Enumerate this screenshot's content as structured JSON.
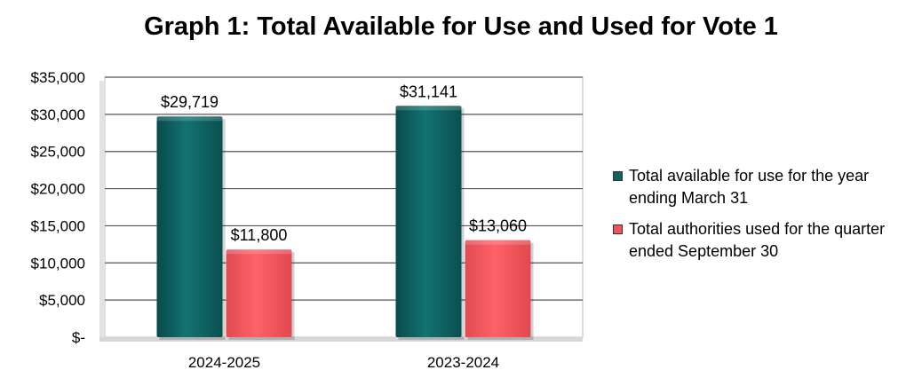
{
  "chart_data": {
    "type": "bar",
    "title": "Graph 1: Total Available for Use and Used for Vote 1",
    "categories": [
      "2024-2025",
      "2023-2024"
    ],
    "series": [
      {
        "name": "Total available for use for the year ending March 31",
        "values": [
          29719,
          31141
        ],
        "labels": [
          "$29,719",
          "$31,141"
        ],
        "color": "#0e6262"
      },
      {
        "name": "Total authorities used for the quarter ended September 30",
        "values": [
          11800,
          13060
        ],
        "labels": [
          "$11,800",
          "$13,060"
        ],
        "color": "#f2545b"
      }
    ],
    "ylim": [
      0,
      35000
    ],
    "yticks": [
      {
        "value": 35000,
        "label": "$35,000"
      },
      {
        "value": 30000,
        "label": "$30,000"
      },
      {
        "value": 25000,
        "label": "$25,000"
      },
      {
        "value": 20000,
        "label": "$20,000"
      },
      {
        "value": 15000,
        "label": "$15,000"
      },
      {
        "value": 10000,
        "label": "$10,000"
      },
      {
        "value": 5000,
        "label": "$5,000"
      },
      {
        "value": 0,
        "label": "$-"
      }
    ],
    "grid": true,
    "legend_position": "right"
  }
}
